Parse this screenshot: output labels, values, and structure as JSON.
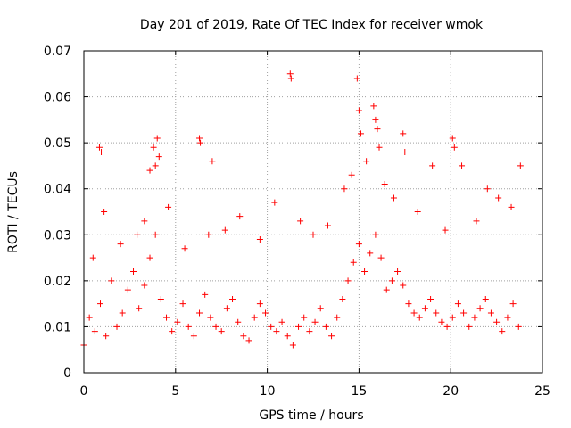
{
  "chart_data": {
    "type": "scatter",
    "title": "Day 201 of 2019, Rate Of TEC Index for receiver wmok",
    "xlabel": "GPS time / hours",
    "ylabel": "ROTI / TECUs",
    "xlim": [
      0,
      25
    ],
    "ylim": [
      0,
      0.07
    ],
    "xticks": [
      "0",
      "5",
      "10",
      "15",
      "20",
      "25"
    ],
    "yticks": [
      "0",
      "0.01",
      "0.02",
      "0.03",
      "0.04",
      "0.05",
      "0.06",
      "0.07"
    ],
    "grid": true,
    "marker": "+",
    "marker_color": "#ff0000",
    "series": [
      {
        "x": [
          0.0,
          0.3,
          0.6,
          0.9,
          1.2,
          1.5,
          1.8,
          2.1,
          2.4,
          2.7,
          3.0,
          3.3,
          3.6,
          3.9,
          4.2,
          4.5,
          4.8,
          5.1,
          5.4,
          5.7,
          6.0,
          6.3,
          6.6,
          6.9,
          7.2,
          7.5,
          7.8,
          8.1,
          8.4,
          8.7,
          9.0,
          9.3,
          9.6,
          9.9,
          10.2,
          10.5,
          10.8,
          11.1,
          11.4,
          11.7,
          12.0,
          12.3,
          12.6,
          12.9,
          13.2,
          13.5,
          13.8,
          14.1,
          14.4,
          14.7,
          15.0,
          15.3,
          15.6,
          15.9,
          16.2,
          16.5,
          16.8,
          17.1,
          17.4,
          17.7,
          18.0,
          18.3,
          18.6,
          18.9,
          19.2,
          19.5,
          19.8,
          20.1,
          20.4,
          20.7,
          21.0,
          21.3,
          21.6,
          21.9,
          22.2,
          22.5,
          22.8,
          23.1,
          23.4,
          23.7,
          0.85,
          0.95,
          3.6,
          3.8,
          3.9,
          4.0,
          4.1,
          6.3,
          6.35,
          7.0,
          11.25,
          11.3,
          14.9,
          15.0,
          15.1,
          15.8,
          15.9,
          16.0,
          16.1,
          17.4,
          17.5,
          20.1,
          20.2,
          20.6,
          22.0,
          23.8,
          0.5,
          1.1,
          2.0,
          2.9,
          3.3,
          4.6,
          5.5,
          6.8,
          7.7,
          8.5,
          9.6,
          10.4,
          11.8,
          12.5,
          13.3,
          14.2,
          14.6,
          15.4,
          16.4,
          16.9,
          18.2,
          19.0,
          19.7,
          21.4,
          22.6,
          23.3
        ],
        "y": [
          0.006,
          0.012,
          0.009,
          0.015,
          0.008,
          0.02,
          0.01,
          0.013,
          0.018,
          0.022,
          0.014,
          0.019,
          0.025,
          0.03,
          0.016,
          0.012,
          0.009,
          0.011,
          0.015,
          0.01,
          0.008,
          0.013,
          0.017,
          0.012,
          0.01,
          0.009,
          0.014,
          0.016,
          0.011,
          0.008,
          0.007,
          0.012,
          0.015,
          0.013,
          0.01,
          0.009,
          0.011,
          0.008,
          0.006,
          0.01,
          0.012,
          0.009,
          0.011,
          0.014,
          0.01,
          0.008,
          0.012,
          0.016,
          0.02,
          0.024,
          0.028,
          0.022,
          0.026,
          0.03,
          0.025,
          0.018,
          0.02,
          0.022,
          0.019,
          0.015,
          0.013,
          0.012,
          0.014,
          0.016,
          0.013,
          0.011,
          0.01,
          0.012,
          0.015,
          0.013,
          0.01,
          0.012,
          0.014,
          0.016,
          0.013,
          0.011,
          0.009,
          0.012,
          0.015,
          0.01,
          0.049,
          0.048,
          0.044,
          0.049,
          0.045,
          0.051,
          0.047,
          0.051,
          0.05,
          0.046,
          0.065,
          0.064,
          0.064,
          0.057,
          0.052,
          0.058,
          0.055,
          0.053,
          0.049,
          0.052,
          0.048,
          0.051,
          0.049,
          0.045,
          0.04,
          0.045,
          0.025,
          0.035,
          0.028,
          0.03,
          0.033,
          0.036,
          0.027,
          0.03,
          0.031,
          0.034,
          0.029,
          0.037,
          0.033,
          0.03,
          0.032,
          0.04,
          0.043,
          0.046,
          0.041,
          0.038,
          0.035,
          0.045,
          0.031,
          0.033,
          0.038,
          0.036
        ]
      }
    ]
  }
}
